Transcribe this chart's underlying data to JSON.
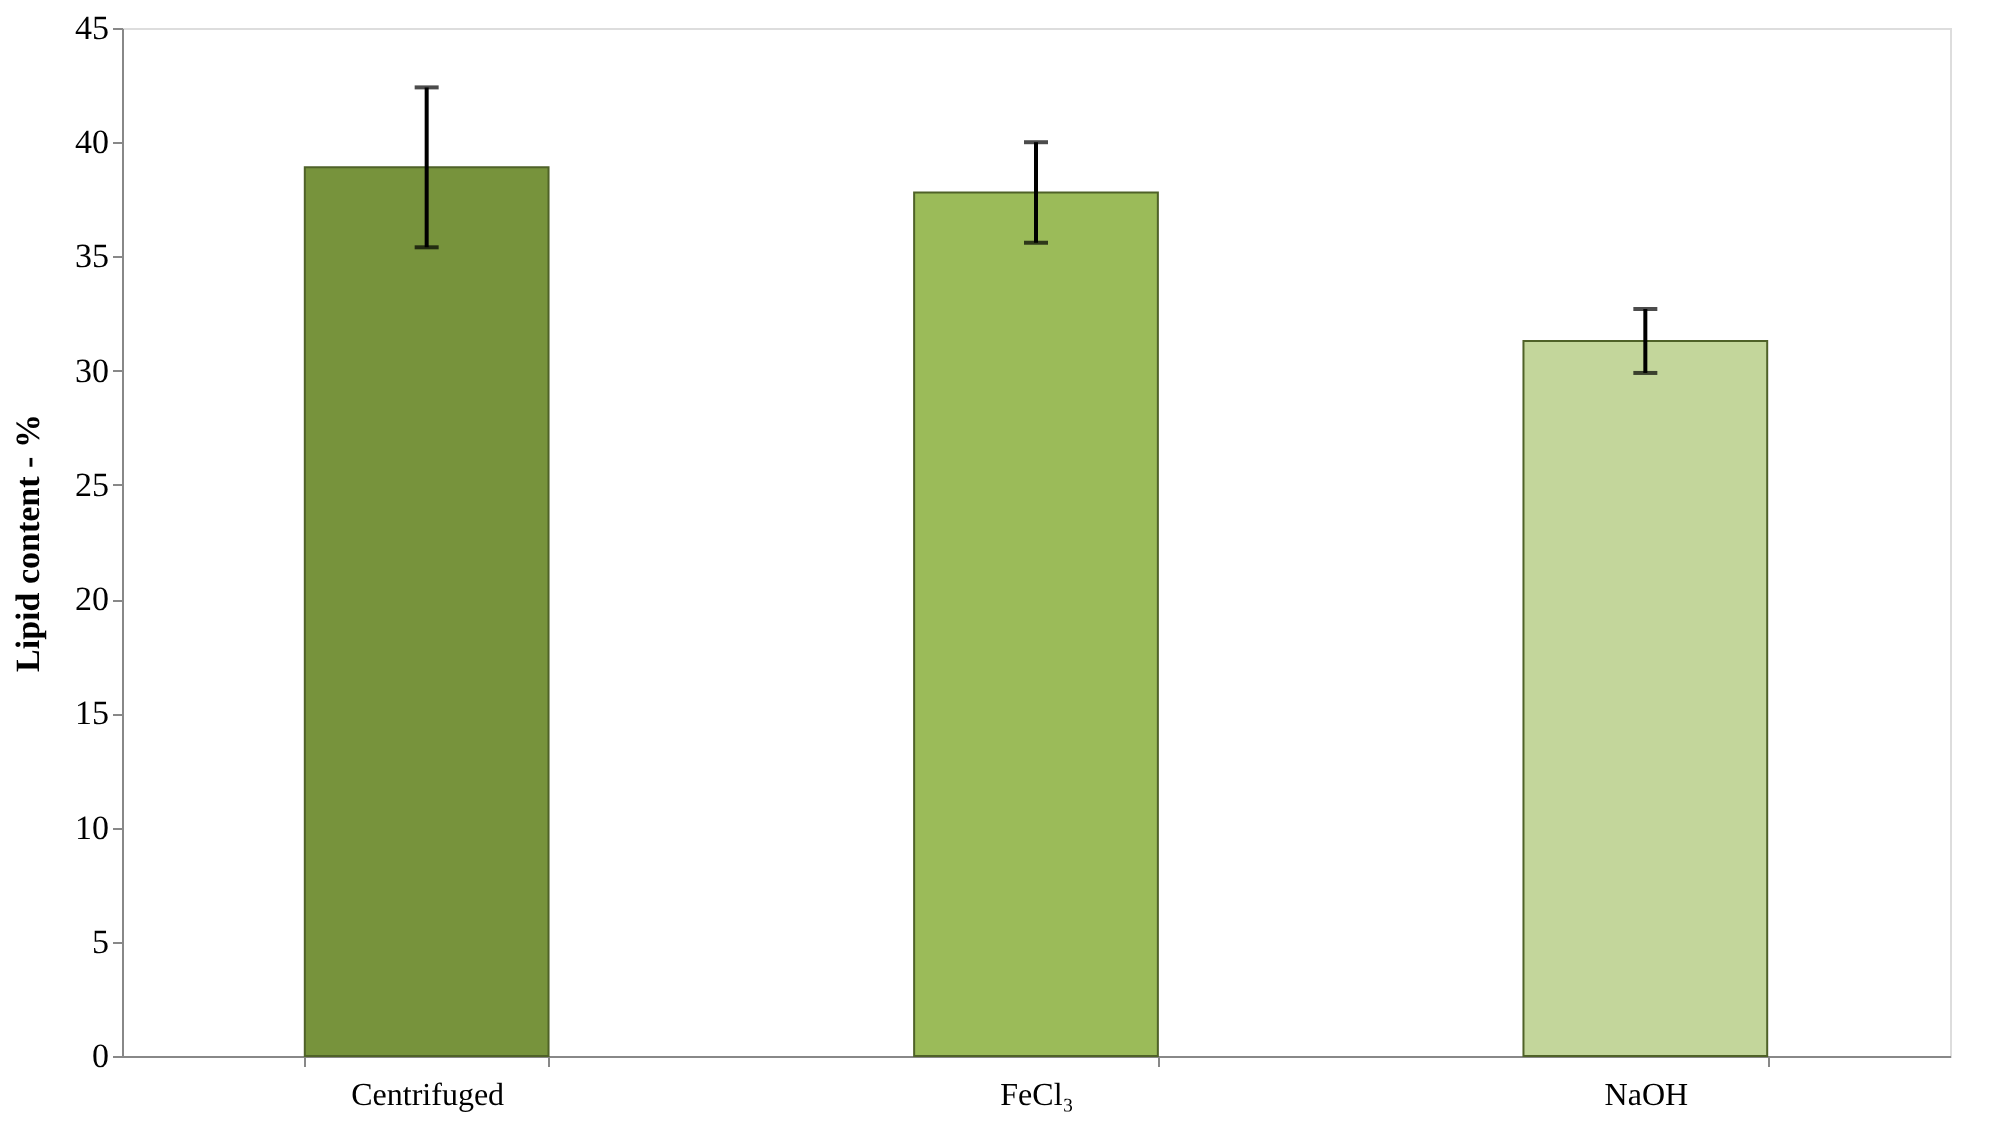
{
  "chart_data": {
    "type": "bar",
    "ylabel": "Lipid content - %",
    "categories": [
      "Centrifuged",
      "FeCl₃",
      "NaOH"
    ],
    "values": [
      38.9,
      37.8,
      31.3
    ],
    "colors": [
      "#77933c",
      "#9bbb59",
      "#c3d69b"
    ],
    "errors": [
      3.5,
      2.2,
      1.4
    ],
    "ylim": [
      0,
      45
    ],
    "yticks": [
      0,
      5,
      10,
      15,
      20,
      25,
      30,
      35,
      40,
      45
    ],
    "grid": false
  }
}
